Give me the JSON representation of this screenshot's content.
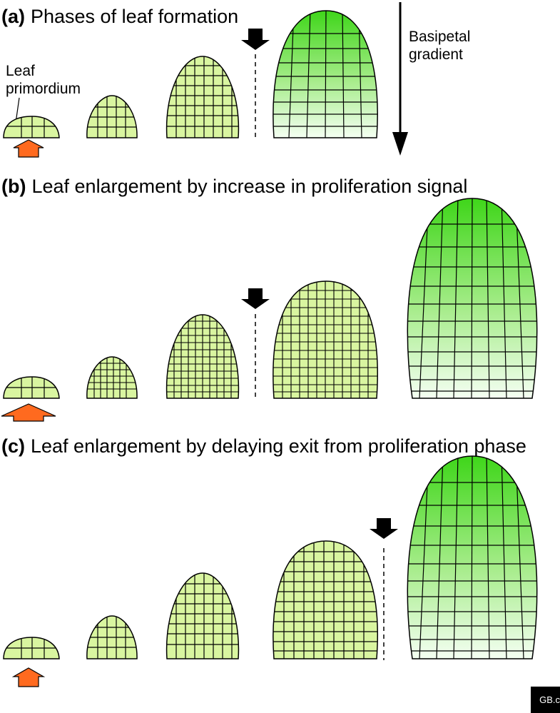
{
  "panels": {
    "a": {
      "letter": "(a)",
      "title": "Phases of leaf formation"
    },
    "b": {
      "letter": "(b)",
      "title": "Leaf enlargement by increase in proliferation signal"
    },
    "c": {
      "letter": "(c)",
      "title": "Leaf enlargement by delaying exit from proliferation phase"
    }
  },
  "labels": {
    "primordium_line1": "Leaf",
    "primordium_line2": "primordium",
    "gradient_line1": "Basipetal",
    "gradient_line2": "gradient"
  },
  "logo": {
    "text": "GB.c"
  },
  "colors": {
    "proliferating_fill": "#d9f5a0",
    "expanding_top": "#3fd61a",
    "expanding_bottom": "#f2fff0",
    "signal_arrow": "#ff6a1f",
    "outline": "#000000"
  }
}
